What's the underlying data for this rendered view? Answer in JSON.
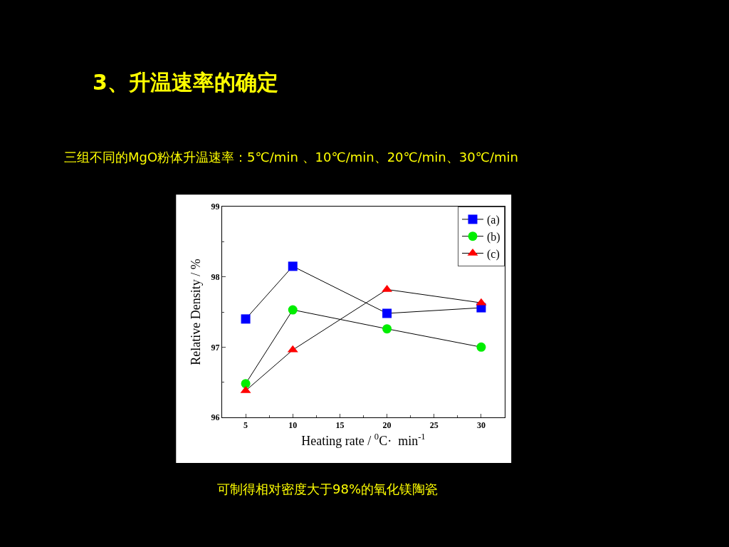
{
  "chart_data": {
    "type": "line",
    "title": "3、升温速率的确定",
    "subtitle": "三组不同的MgO粉体升温速率：5℃/min 、10℃/min、20℃/min、30℃/min",
    "annotations": [
      "可制得相对密度大于98%的氧化镁陶瓷"
    ],
    "xlabel": "Heating rate / $^{0}$C·  min$^{-1}$",
    "ylabel": "Relative Density / %",
    "x": [
      5,
      10,
      20,
      30
    ],
    "series": [
      {
        "name": "(a)",
        "color": "#0000ff",
        "marker": "square",
        "values": [
          97.4,
          98.15,
          97.48,
          97.56
        ]
      },
      {
        "name": "(b)",
        "color": "#00ee00",
        "marker": "circle",
        "values": [
          96.48,
          97.53,
          97.26,
          97.0
        ]
      },
      {
        "name": "(c)",
        "color": "#ff0000",
        "marker": "triangle",
        "values": [
          96.38,
          96.96,
          97.82,
          97.63
        ]
      }
    ],
    "xlim": [
      2.5,
      32.5
    ],
    "xticks": [
      5,
      10,
      15,
      20,
      25,
      30
    ],
    "ylim": [
      96,
      99
    ],
    "yticks": [
      96,
      97,
      98,
      99
    ],
    "legend": "top right",
    "line_style": "solid"
  }
}
